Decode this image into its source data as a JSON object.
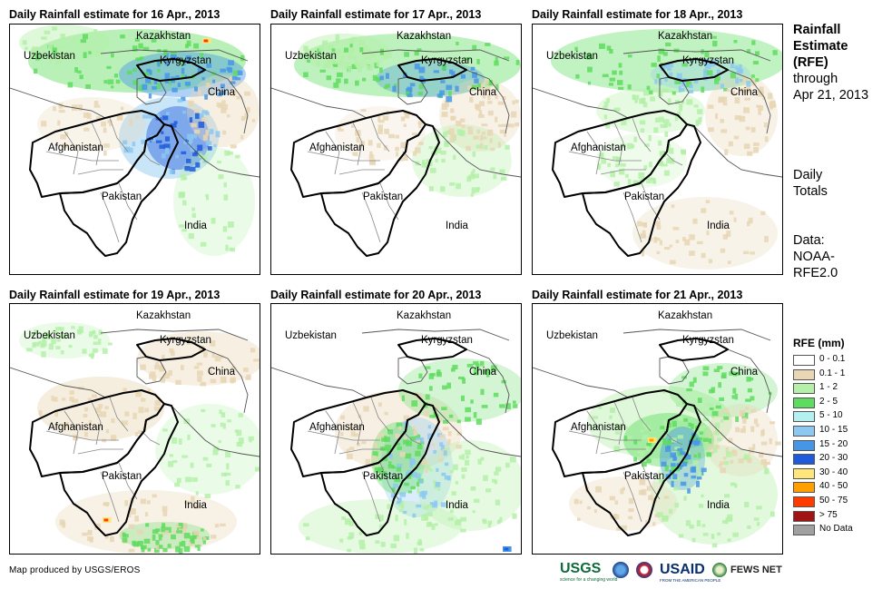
{
  "panels": [
    {
      "title": "Daily Rainfall estimate for 16 Apr., 2013"
    },
    {
      "title": "Daily Rainfall estimate for 17 Apr., 2013"
    },
    {
      "title": "Daily Rainfall estimate for 18 Apr., 2013"
    },
    {
      "title": "Daily Rainfall estimate for 19 Apr., 2013"
    },
    {
      "title": "Daily Rainfall estimate for 20 Apr., 2013"
    },
    {
      "title": "Daily Rainfall estimate for 21 Apr., 2013"
    }
  ],
  "map_labels": {
    "kazakhstan": "Kazakhstan",
    "uzbekistan": "Uzbekistan",
    "kyrgyzstan": "Kyrgyzstan",
    "china": "China",
    "afghanistan": "Afghanistan",
    "pakistan": "Pakistan",
    "india": "India"
  },
  "sidebar": {
    "title_line1": "Rainfall",
    "title_line2": "Estimate",
    "title_line3": "(RFE)",
    "through": "through",
    "date": "Apr 21, 2013",
    "daily1": "Daily",
    "daily2": "Totals",
    "data1": "Data:",
    "data2": "NOAA-",
    "data3": "RFE2.0"
  },
  "legend": {
    "title": "RFE (mm)",
    "items": [
      {
        "label": "0 - 0.1",
        "color": "#ffffff"
      },
      {
        "label": "0.1 - 1",
        "color": "#e8d6b4"
      },
      {
        "label": "1 - 2",
        "color": "#b4f0a8"
      },
      {
        "label": "2 - 5",
        "color": "#5edc5e"
      },
      {
        "label": "5 - 10",
        "color": "#b4f0f0"
      },
      {
        "label": "10 - 15",
        "color": "#8cc8f0"
      },
      {
        "label": "15 - 20",
        "color": "#4696e6"
      },
      {
        "label": "20 - 30",
        "color": "#1e5adc"
      },
      {
        "label": "30 - 40",
        "color": "#ffe678"
      },
      {
        "label": "40 - 50",
        "color": "#ffa000"
      },
      {
        "label": "50 - 75",
        "color": "#ff3c00"
      },
      {
        "label": "> 75",
        "color": "#a01414"
      },
      {
        "label": "No Data",
        "color": "#a0a0a0"
      }
    ]
  },
  "footer": {
    "credit": "Map produced by USGS/EROS",
    "usgs": "USGS",
    "usgs_sub": "science for a changing world",
    "usaid": "USAID",
    "usaid_sub": "FROM THE AMERICAN PEOPLE",
    "fews": "FEWS NET"
  }
}
